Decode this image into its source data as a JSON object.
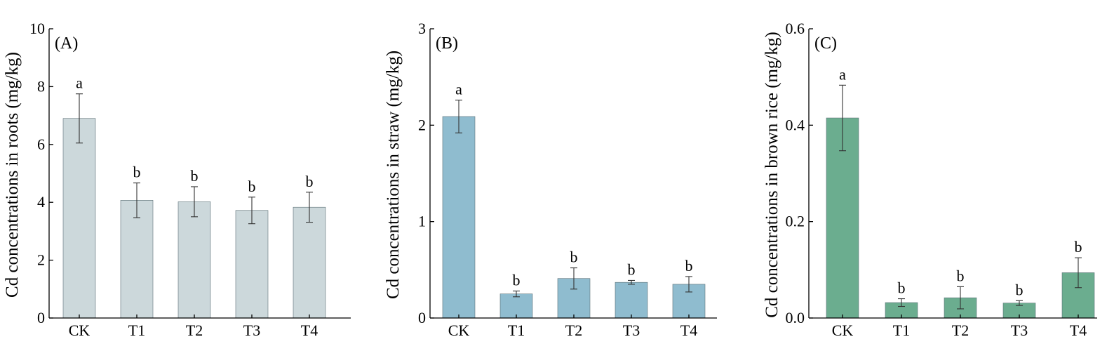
{
  "chart_data": [
    {
      "type": "bar",
      "panel_label": "(A)",
      "ylabel": "Cd concentrations in roots (mg/kg)",
      "categories": [
        "CK",
        "T1",
        "T2",
        "T3",
        "T4"
      ],
      "values": [
        6.9,
        4.07,
        4.02,
        3.72,
        3.83
      ],
      "errors": [
        0.85,
        0.6,
        0.52,
        0.46,
        0.52
      ],
      "significance": [
        "a",
        "b",
        "b",
        "b",
        "b"
      ],
      "ylim": [
        0,
        10
      ],
      "yticks": [
        "0",
        "2",
        "4",
        "6",
        "8",
        "10"
      ],
      "color": "#ccd8db"
    },
    {
      "type": "bar",
      "panel_label": "(B)",
      "ylabel": "Cd concentrations in straw (mg/kg)",
      "categories": [
        "CK",
        "T1",
        "T2",
        "T3",
        "T4"
      ],
      "values": [
        2.09,
        0.25,
        0.41,
        0.37,
        0.35
      ],
      "errors": [
        0.17,
        0.03,
        0.11,
        0.02,
        0.08
      ],
      "significance": [
        "a",
        "b",
        "b",
        "b",
        "b"
      ],
      "ylim": [
        0,
        3
      ],
      "yticks": [
        "0",
        "1",
        "2",
        "3"
      ],
      "color": "#8fbccf"
    },
    {
      "type": "bar",
      "panel_label": "(C)",
      "ylabel": "Cd concentrations in brown rice (mg/kg)",
      "categories": [
        "CK",
        "T1",
        "T2",
        "T3",
        "T4"
      ],
      "values": [
        0.415,
        0.032,
        0.042,
        0.031,
        0.094
      ],
      "errors": [
        0.068,
        0.008,
        0.023,
        0.005,
        0.031
      ],
      "significance": [
        "a",
        "b",
        "b",
        "b",
        "b"
      ],
      "ylim": [
        0,
        0.6
      ],
      "yticks": [
        "0.0",
        "0.2",
        "0.4",
        "0.6"
      ],
      "color": "#6bad8f"
    }
  ]
}
